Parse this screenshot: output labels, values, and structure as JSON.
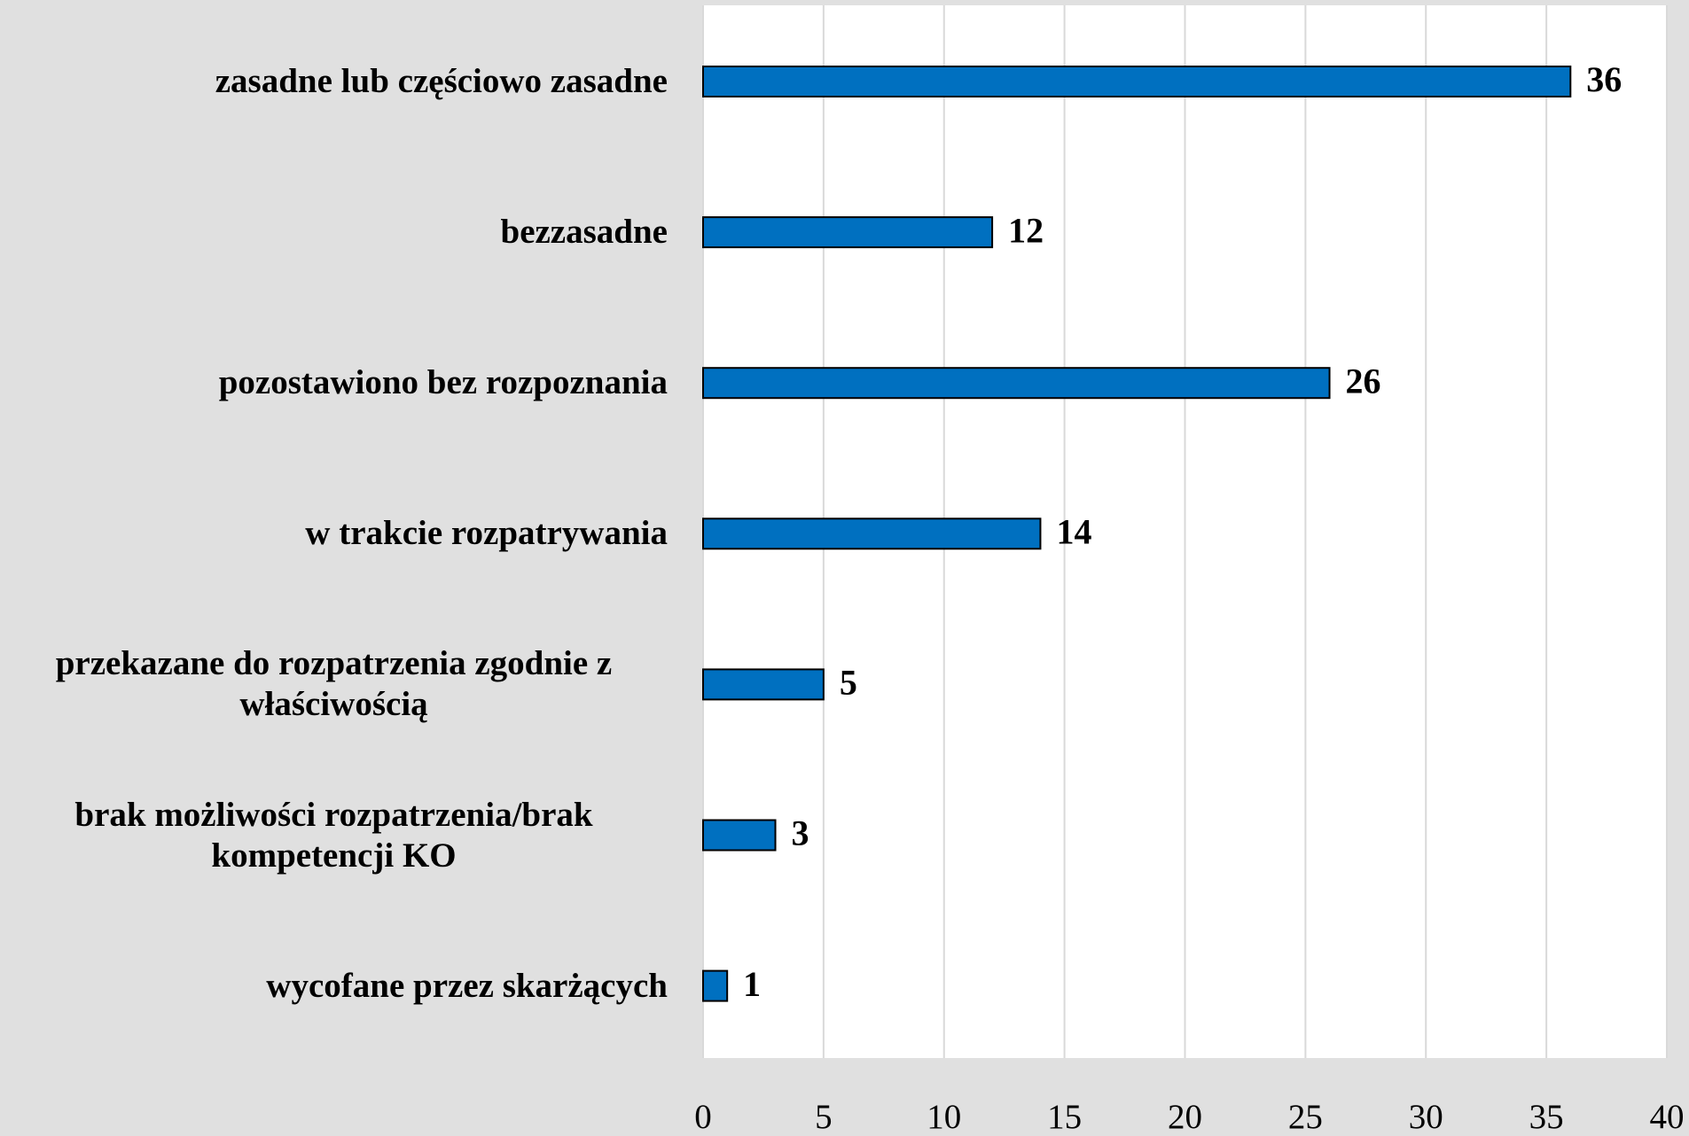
{
  "chart_data": {
    "type": "bar",
    "orientation": "horizontal",
    "categories": [
      "zasadne lub częściowo zasadne",
      "bezzasadne",
      "pozostawiono bez rozpoznania",
      "w trakcie rozpatrywania",
      "przekazane do rozpatrzenia zgodnie z właściwością",
      "brak możliwości rozpatrzenia/brak kompetencji KO",
      "wycofane przez skarżących"
    ],
    "values": [
      36,
      12,
      26,
      14,
      5,
      3,
      1
    ],
    "color": "#0070c0",
    "xlim": [
      0,
      40
    ],
    "xticks": [
      0,
      5,
      10,
      15,
      20,
      25,
      30,
      35,
      40
    ],
    "grid": true
  }
}
